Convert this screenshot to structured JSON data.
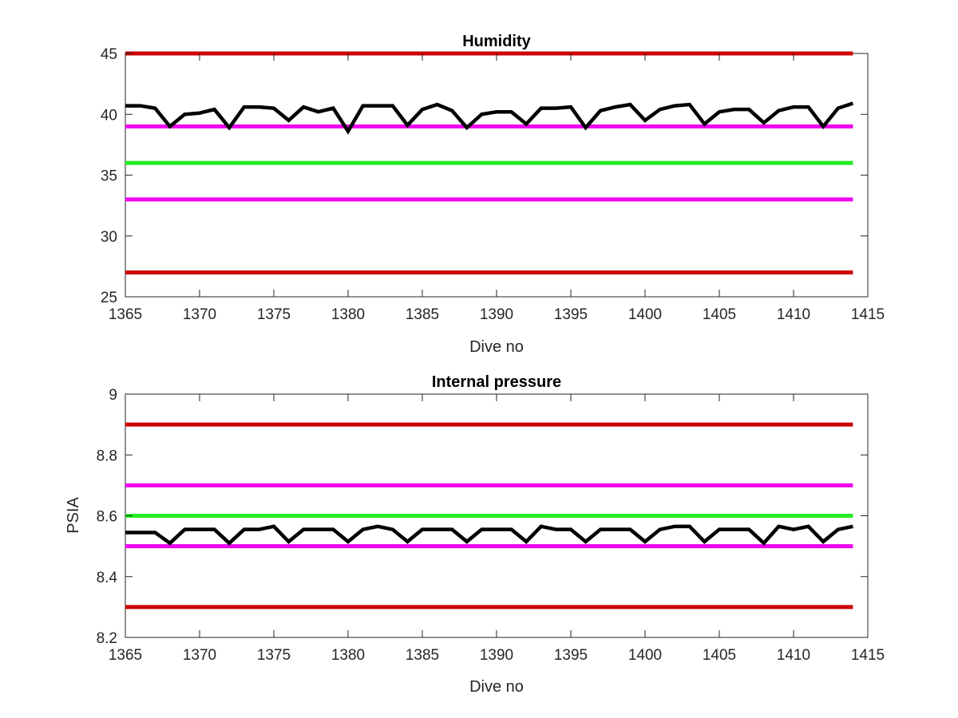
{
  "chart_data": [
    {
      "type": "line",
      "title": "Humidity",
      "xlabel": "Dive no",
      "ylabel": "",
      "xlim": [
        1365,
        1415
      ],
      "ylim": [
        25,
        45
      ],
      "xticks": [
        "1365",
        "1370",
        "1375",
        "1380",
        "1385",
        "1390",
        "1395",
        "1400",
        "1405",
        "1410",
        "1415"
      ],
      "yticks": [
        "25",
        "30",
        "35",
        "40",
        "45"
      ],
      "grid": false,
      "legend": "none",
      "x_range": [
        1365,
        1414
      ],
      "reference_lines": [
        {
          "y": 45,
          "color": "#cc0000"
        },
        {
          "y": 39,
          "color": "#ee00ee"
        },
        {
          "y": 36,
          "color": "#22ee22"
        },
        {
          "y": 33,
          "color": "#ee00ee"
        },
        {
          "y": 27,
          "color": "#cc0000"
        }
      ],
      "series": [
        {
          "color": "#000000",
          "x": [
            1365,
            1366,
            1367,
            1368,
            1369,
            1370,
            1371,
            1372,
            1373,
            1374,
            1375,
            1376,
            1377,
            1378,
            1379,
            1380,
            1381,
            1382,
            1383,
            1384,
            1385,
            1386,
            1387,
            1388,
            1389,
            1390,
            1391,
            1392,
            1393,
            1394,
            1395,
            1396,
            1397,
            1398,
            1399,
            1400,
            1401,
            1402,
            1403,
            1404,
            1405,
            1406,
            1407,
            1408,
            1409,
            1410,
            1411,
            1412,
            1413,
            1414
          ],
          "values": [
            40.7,
            40.7,
            40.5,
            39.0,
            40.0,
            40.1,
            40.4,
            38.9,
            40.6,
            40.6,
            40.5,
            39.5,
            40.6,
            40.2,
            40.5,
            38.6,
            40.7,
            40.7,
            40.7,
            39.1,
            40.4,
            40.8,
            40.3,
            38.9,
            40.0,
            40.2,
            40.2,
            39.2,
            40.5,
            40.5,
            40.6,
            38.9,
            40.3,
            40.6,
            40.8,
            39.5,
            40.4,
            40.7,
            40.8,
            39.2,
            40.2,
            40.4,
            40.4,
            39.3,
            40.3,
            40.6,
            40.6,
            39.0,
            40.5,
            40.9
          ]
        }
      ]
    },
    {
      "type": "line",
      "title": "Internal pressure",
      "xlabel": "Dive no",
      "ylabel": "PSIA",
      "xlim": [
        1365,
        1415
      ],
      "ylim": [
        8.2,
        9.0
      ],
      "xticks": [
        "1365",
        "1370",
        "1375",
        "1380",
        "1385",
        "1390",
        "1395",
        "1400",
        "1405",
        "1410",
        "1415"
      ],
      "yticks": [
        "8.2",
        "8.4",
        "8.6",
        "8.8",
        "9"
      ],
      "grid": false,
      "legend": "none",
      "x_range": [
        1365,
        1414
      ],
      "reference_lines": [
        {
          "y": 8.9,
          "color": "#cc0000"
        },
        {
          "y": 8.7,
          "color": "#ee00ee"
        },
        {
          "y": 8.6,
          "color": "#22ee22"
        },
        {
          "y": 8.5,
          "color": "#ee00ee"
        },
        {
          "y": 8.3,
          "color": "#cc0000"
        }
      ],
      "series": [
        {
          "color": "#000000",
          "x": [
            1365,
            1366,
            1367,
            1368,
            1369,
            1370,
            1371,
            1372,
            1373,
            1374,
            1375,
            1376,
            1377,
            1378,
            1379,
            1380,
            1381,
            1382,
            1383,
            1384,
            1385,
            1386,
            1387,
            1388,
            1389,
            1390,
            1391,
            1392,
            1393,
            1394,
            1395,
            1396,
            1397,
            1398,
            1399,
            1400,
            1401,
            1402,
            1403,
            1404,
            1405,
            1406,
            1407,
            1408,
            1409,
            1410,
            1411,
            1412,
            1413,
            1414
          ],
          "values": [
            8.545,
            8.545,
            8.545,
            8.51,
            8.555,
            8.555,
            8.555,
            8.51,
            8.555,
            8.555,
            8.565,
            8.515,
            8.555,
            8.555,
            8.555,
            8.515,
            8.555,
            8.565,
            8.555,
            8.515,
            8.555,
            8.555,
            8.555,
            8.515,
            8.555,
            8.555,
            8.555,
            8.515,
            8.565,
            8.555,
            8.555,
            8.515,
            8.555,
            8.555,
            8.555,
            8.515,
            8.555,
            8.565,
            8.565,
            8.515,
            8.555,
            8.555,
            8.555,
            8.51,
            8.565,
            8.555,
            8.565,
            8.515,
            8.555,
            8.565
          ]
        }
      ]
    }
  ]
}
